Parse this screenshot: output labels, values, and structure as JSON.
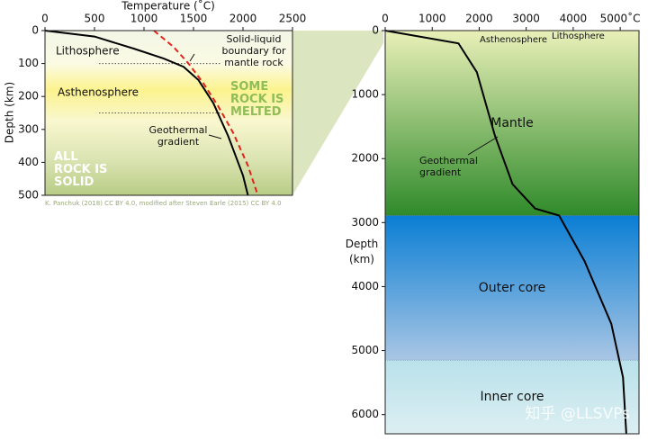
{
  "chart_data": [
    {
      "type": "line",
      "x_label": "Temperature (˚C)",
      "y_label": "Depth (km)",
      "xlim": [
        0,
        2500
      ],
      "xticks": [
        0,
        500,
        1000,
        1500,
        2000,
        2500
      ],
      "ylim": [
        0,
        500
      ],
      "yticks": [
        0,
        100,
        200,
        300,
        400,
        500
      ],
      "y_inverted": true,
      "boundaries": [
        100,
        250
      ],
      "annotations": [
        "Lithosphere",
        "Asthenosphere",
        "SOME ROCK IS MELTED",
        "ALL ROCK IS SOLID"
      ],
      "series": [
        {
          "name": "Geothermal gradient",
          "color": "#000000",
          "dashed": false,
          "x": [
            0,
            500,
            900,
            1200,
            1400,
            1550,
            1700,
            1850,
            2000,
            2050
          ],
          "values": [
            0,
            18,
            55,
            85,
            110,
            150,
            220,
            320,
            440,
            500
          ]
        },
        {
          "name": "Solid-liquid boundary for mantle rock",
          "color": "#e3231b",
          "dashed": true,
          "x": [
            1100,
            1300,
            1450,
            1600,
            1750,
            1900,
            2050,
            2150
          ],
          "values": [
            0,
            50,
            100,
            160,
            230,
            310,
            410,
            500
          ]
        }
      ],
      "credit": "K. Panchuk (2018) CC BY 4.0, modified after Steven Earle (2015) CC BY 4.0"
    },
    {
      "type": "line",
      "y_label": "Depth (km)",
      "xlim": [
        0,
        5400
      ],
      "xticks": [
        0,
        1000,
        2000,
        3000,
        4000,
        {
          "value": 5000,
          "label": "5000˚C"
        }
      ],
      "ylim": [
        0,
        6300
      ],
      "yticks": [
        1000,
        2000,
        3000,
        4000,
        5000,
        6000,
        0
      ],
      "y_inverted": true,
      "annotations": [
        "Asthenosphere",
        "Lithosphere"
      ],
      "layers": [
        {
          "name": "Mantle",
          "top": 0,
          "bottom": 2890,
          "colors": [
            "#e9f0b8",
            "#2f8a2a"
          ]
        },
        {
          "name": "Outer core",
          "top": 2890,
          "bottom": 5150,
          "colors": [
            "#0a7ed4",
            "#a9c6e4"
          ]
        },
        {
          "name": "Inner core",
          "top": 5150,
          "bottom": 6300,
          "colors": [
            "#b9e1ea",
            "#dceff2"
          ]
        }
      ],
      "series": [
        {
          "name": "Geothermal gradient",
          "color": "#000000",
          "dashed": false,
          "x": [
            0,
            1560,
            1950,
            2330,
            2710,
            3190,
            3700,
            4240,
            4810,
            5060,
            5130
          ],
          "values": [
            0,
            200,
            650,
            1630,
            2400,
            2780,
            2890,
            3600,
            4580,
            5420,
            6300
          ]
        }
      ],
      "watermark": "知乎 @LLSVPs"
    }
  ]
}
